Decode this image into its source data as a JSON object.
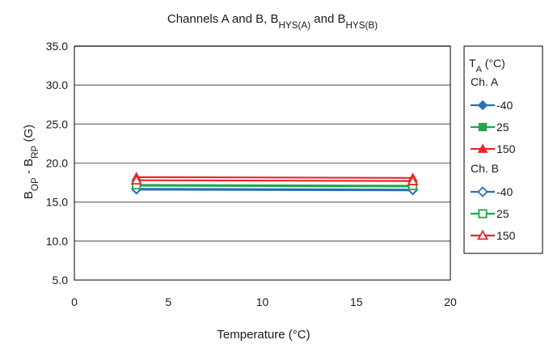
{
  "chart_data": {
    "type": "line",
    "title": {
      "parts": [
        {
          "text": "Channels A and B, B",
          "sub": false
        },
        {
          "text": "HYS(A)",
          "sub": true
        },
        {
          "text": " and B",
          "sub": false
        },
        {
          "text": "HYS(B)",
          "sub": true
        }
      ]
    },
    "xlabel": "Temperature (°C)",
    "ylabel": {
      "parts": [
        {
          "text": "B",
          "sub": false
        },
        {
          "text": "OP",
          "sub": true
        },
        {
          "text": " - B",
          "sub": false
        },
        {
          "text": "RP",
          "sub": true
        },
        {
          "text": " (G)",
          "sub": false
        }
      ]
    },
    "xlim": [
      0,
      20
    ],
    "ylim": [
      5,
      35
    ],
    "x_ticks": [
      "0",
      "5",
      "10",
      "15",
      "20"
    ],
    "y_ticks": [
      "5.0",
      "10.0",
      "15.0",
      "20.0",
      "25.0",
      "30.0",
      "35.0"
    ],
    "grid": "horizontal",
    "legend": {
      "placement": "right",
      "title": {
        "parts": [
          {
            "text": "T",
            "sub": false
          },
          {
            "text": "A",
            "sub": true
          },
          {
            "text": " (°C)",
            "sub": false
          }
        ]
      },
      "groups": [
        "Ch. A",
        "Ch. B"
      ]
    },
    "series": [
      {
        "name": "-40",
        "group": "Ch. A",
        "color": "#2a6ebb",
        "marker": "diamond",
        "filled": true,
        "x": [
          3.3,
          18.0
        ],
        "y": [
          16.6,
          16.5
        ]
      },
      {
        "name": "25",
        "group": "Ch. A",
        "color": "#1fa64a",
        "marker": "square",
        "filled": true,
        "x": [
          3.3,
          18.0
        ],
        "y": [
          17.1,
          17.0
        ]
      },
      {
        "name": "150",
        "group": "Ch. A",
        "color": "#e8262a",
        "marker": "triangle",
        "filled": true,
        "x": [
          3.3,
          18.0
        ],
        "y": [
          18.2,
          18.1
        ]
      },
      {
        "name": "-40",
        "group": "Ch. B",
        "color": "#2a6ebb",
        "marker": "diamond",
        "filled": false,
        "x": [
          3.3,
          18.0
        ],
        "y": [
          16.7,
          16.6
        ]
      },
      {
        "name": "25",
        "group": "Ch. B",
        "color": "#1fa64a",
        "marker": "square",
        "filled": false,
        "x": [
          3.3,
          18.0
        ],
        "y": [
          17.2,
          17.1
        ]
      },
      {
        "name": "150",
        "group": "Ch. B",
        "color": "#e8262a",
        "marker": "triangle",
        "filled": false,
        "x": [
          3.3,
          18.0
        ],
        "y": [
          17.8,
          17.7
        ]
      }
    ]
  }
}
